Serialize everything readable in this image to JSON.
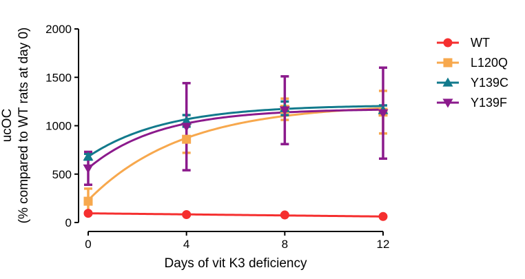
{
  "chart_data": {
    "type": "line",
    "xlabel": "Days of vit K3 deficiency",
    "ylabel_line1": "ucOC",
    "ylabel_line2": "(% compared to WT rats at day 0)",
    "xlim": [
      0,
      12
    ],
    "ylim": [
      0,
      2000
    ],
    "x_ticks": [
      0,
      4,
      8,
      12
    ],
    "y_ticks": [
      0,
      500,
      1000,
      1500,
      2000
    ],
    "grid": false,
    "legend_position": "right",
    "series": [
      {
        "name": "WT",
        "color": "#f52f2f",
        "marker": "circle",
        "x": [
          0,
          4,
          8,
          12
        ],
        "values": [
          95,
          82,
          78,
          62
        ],
        "err": [
          10,
          8,
          8,
          8
        ],
        "fit": {
          "type": "linear",
          "start": 95,
          "end": 62
        }
      },
      {
        "name": "L120Q",
        "color": "#f7a84d",
        "marker": "square",
        "x": [
          0,
          4,
          8,
          12
        ],
        "values": [
          220,
          860,
          1170,
          1140
        ],
        "err": [
          130,
          140,
          110,
          220
        ],
        "fit": {
          "type": "exp",
          "y0": 230,
          "plateau": 1225,
          "k": 0.26
        }
      },
      {
        "name": "Y139C",
        "color": "#127a8c",
        "marker": "triangle-up",
        "x": [
          0,
          4,
          8,
          12
        ],
        "values": [
          680,
          1050,
          1180,
          1160
        ],
        "err": [
          30,
          60,
          70,
          50
        ],
        "fit": {
          "type": "exp",
          "y0": 680,
          "plateau": 1215,
          "k": 0.32
        }
      },
      {
        "name": "Y139F",
        "color": "#8b1a8c",
        "marker": "triangle-down",
        "x": [
          0,
          4,
          8,
          12
        ],
        "values": [
          560,
          990,
          1160,
          1130
        ],
        "err": [
          170,
          450,
          350,
          470
        ],
        "fit": {
          "type": "exp",
          "y0": 560,
          "plateau": 1175,
          "k": 0.35
        }
      }
    ]
  }
}
